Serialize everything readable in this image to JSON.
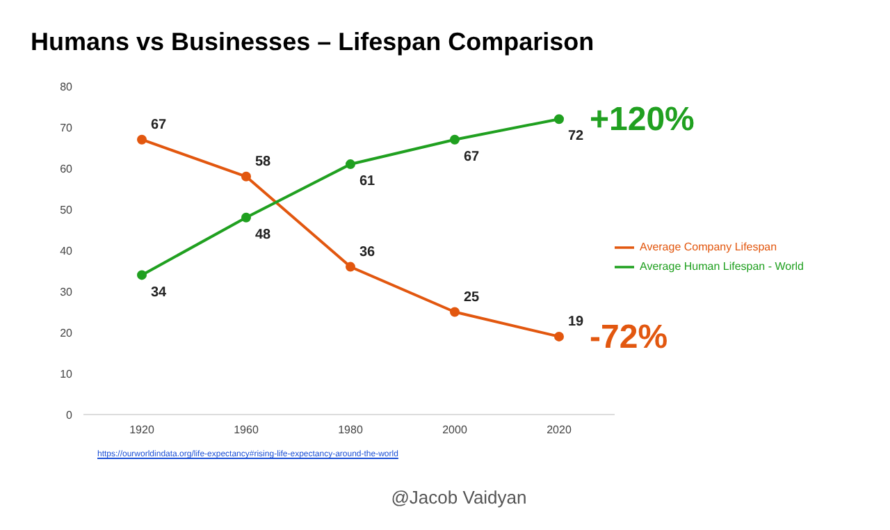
{
  "chart_data": {
    "type": "line",
    "title": "Humans vs Businesses – Lifespan Comparison",
    "categories": [
      "1920",
      "1960",
      "1980",
      "2000",
      "2020"
    ],
    "series": [
      {
        "name": "Average Company Lifespan",
        "color": "#e2570f",
        "values": [
          67,
          58,
          36,
          25,
          19
        ]
      },
      {
        "name": "Average Human Lifespan - World",
        "color": "#20a020",
        "values": [
          34,
          48,
          61,
          67,
          72
        ]
      }
    ],
    "ylim": [
      0,
      80
    ],
    "yticks": [
      0,
      10,
      20,
      30,
      40,
      50,
      60,
      70,
      80
    ],
    "grid": false,
    "legend": "right",
    "marker": "circle",
    "data_labels": true,
    "annotations": [
      {
        "text": "+120%",
        "x": "2020",
        "y": 72
      },
      {
        "text": "-72%",
        "x": "2020",
        "y": 19
      },
      "https://ourworldindata.org/life-expectancy#rising-life-expectancy-around-the-world",
      "@Jacob Vaidyan"
    ]
  }
}
